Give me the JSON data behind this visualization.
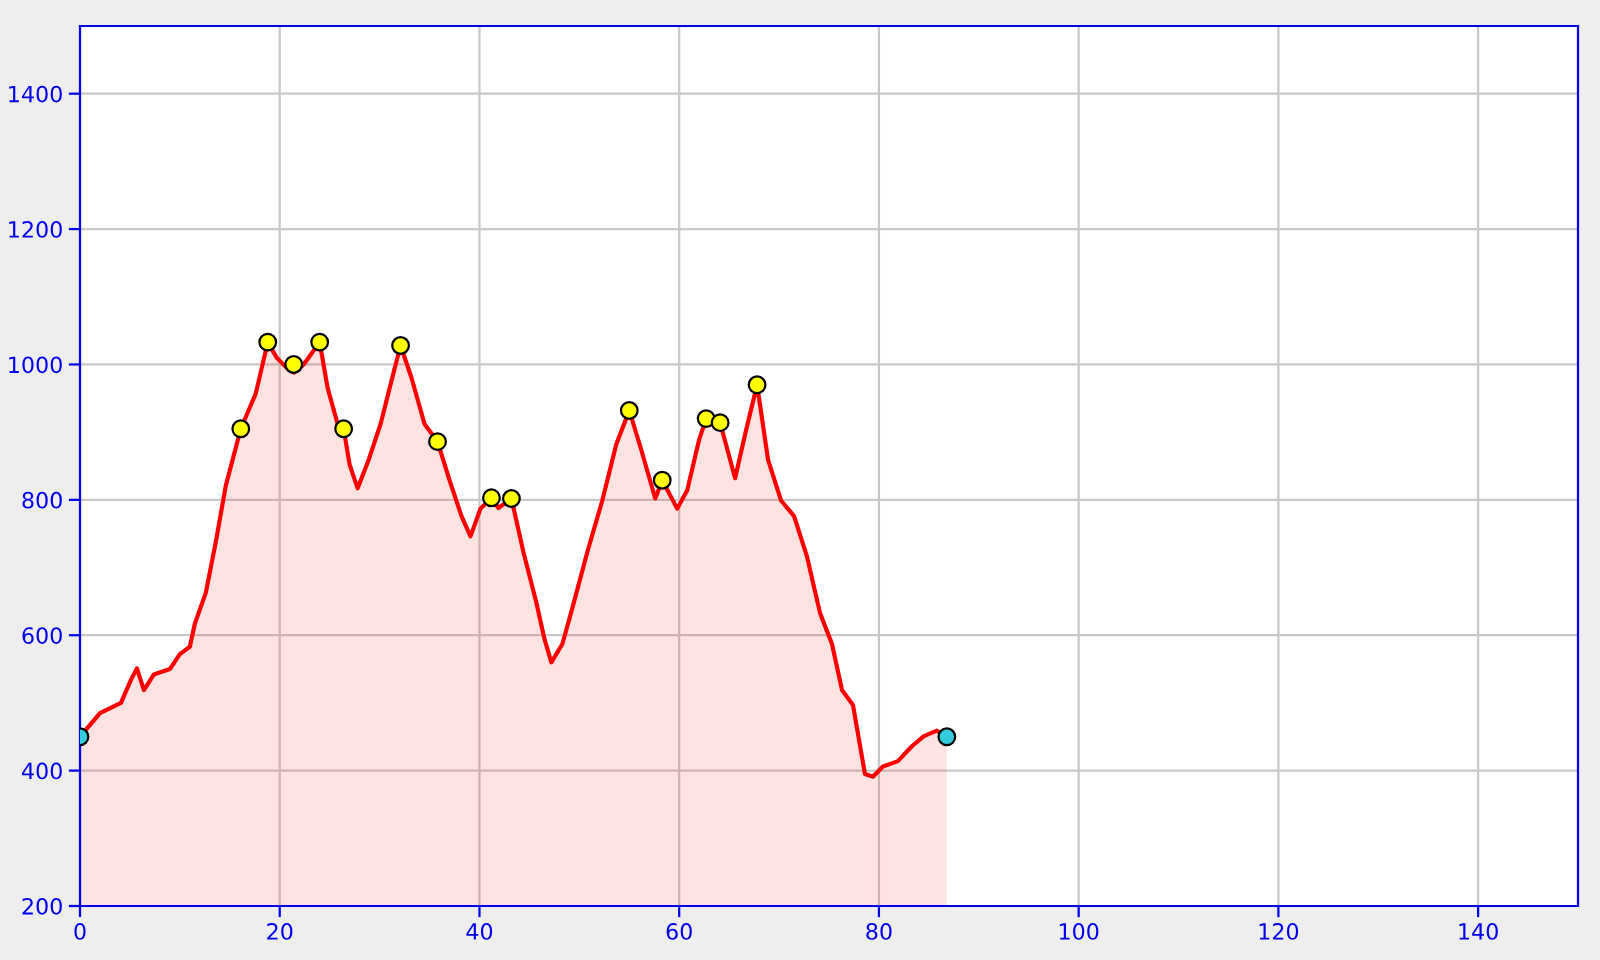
{
  "chart_data": {
    "type": "area",
    "series": [
      {
        "color": "#ff0000",
        "x": [
          0,
          2.0,
          4.1,
          5.1,
          5.7,
          6.4,
          7.4,
          9.0,
          10.0,
          11.0,
          11.5,
          12.6,
          13.6,
          14.6,
          16.1,
          17.6,
          18.8,
          19.7,
          20.7,
          21.4,
          22.4,
          24.0,
          24.8,
          25.8,
          26.4,
          27.0,
          27.8,
          28.9,
          30.1,
          31.4,
          32.1,
          33.2,
          34.5,
          35.8,
          37.0,
          38.2,
          39.1,
          40.1,
          41.2,
          41.9,
          43.2,
          44.4,
          45.7,
          46.5,
          47.2,
          48.3,
          49.3,
          50.8,
          52.3,
          53.7,
          55.0,
          56.2,
          57.6,
          58.3,
          59.8,
          60.8,
          62.0,
          62.7,
          64.1,
          65.6,
          66.6,
          67.8,
          68.9,
          70.2,
          71.5,
          72.8,
          74.1,
          75.3,
          76.3,
          77.4,
          78.6,
          79.4,
          80.4,
          81.9,
          83.3,
          84.5,
          85.8,
          86.8
        ],
        "values": [
          450,
          485,
          500,
          534,
          551,
          519,
          542,
          550,
          572,
          583,
          617,
          663,
          738,
          821,
          905,
          957,
          1033,
          1010,
          995,
          988,
          1000,
          1033,
          965,
          912,
          905,
          852,
          817,
          859,
          912,
          988,
          1028,
          980,
          912,
          886,
          829,
          776,
          746,
          787,
          803,
          788,
          802,
          723,
          648,
          595,
          560,
          587,
          640,
          723,
          799,
          882,
          932,
          874,
          802,
          829,
          787,
          814,
          889,
          920,
          914,
          832,
          897,
          970,
          859,
          799,
          776,
          716,
          633,
          587,
          519,
          497,
          395,
          391,
          406,
          414,
          436,
          451,
          459,
          450
        ]
      },
      {
        "type": "scatter",
        "color": "#ffff00",
        "marker": "circle",
        "x": [
          16.1,
          18.8,
          21.4,
          24.0,
          26.4,
          32.1,
          35.8,
          41.2,
          43.2,
          55.0,
          58.3,
          62.7,
          64.1,
          67.8
        ],
        "values": [
          905,
          1033,
          1000,
          1033,
          905,
          1028,
          886,
          803,
          802,
          932,
          829,
          920,
          914,
          970
        ]
      },
      {
        "type": "scatter",
        "color": "#33ccdd",
        "marker": "circle",
        "x": [
          0,
          86.8
        ],
        "values": [
          450,
          450
        ]
      }
    ],
    "xlim": [
      0,
      150
    ],
    "xticks": [
      0,
      20,
      40,
      60,
      80,
      100,
      120,
      140
    ],
    "ylim": [
      200,
      1500
    ],
    "yticks": [
      200,
      400,
      600,
      800,
      1000,
      1200,
      1400
    ],
    "grid": true
  }
}
